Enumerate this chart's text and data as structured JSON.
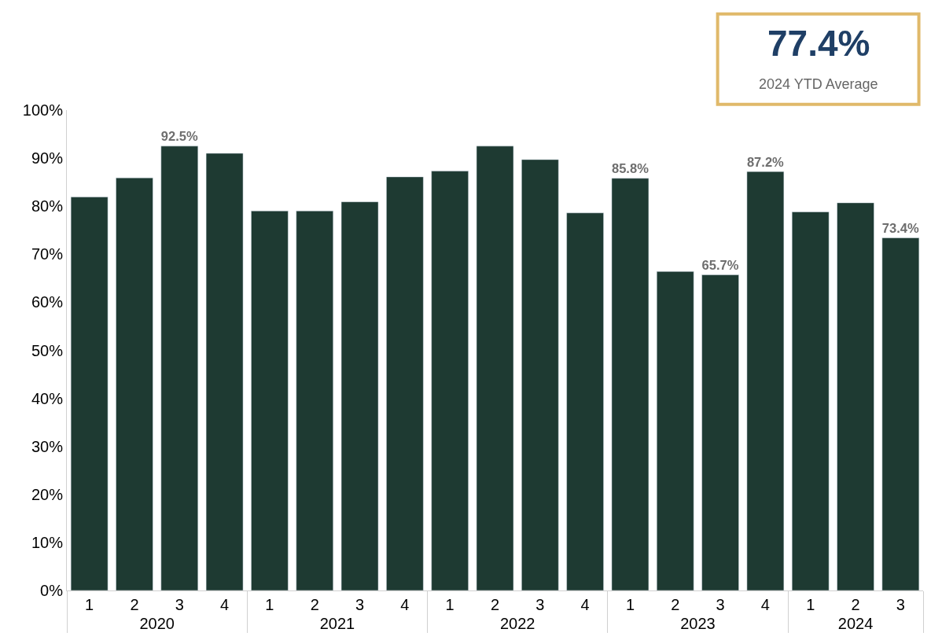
{
  "chart_data": {
    "type": "bar",
    "categories": [
      [
        "2020",
        "1"
      ],
      [
        null,
        "2"
      ],
      [
        null,
        "3"
      ],
      [
        null,
        "4"
      ],
      [
        "2021",
        "1"
      ],
      [
        null,
        "2"
      ],
      [
        null,
        "3"
      ],
      [
        null,
        "4"
      ],
      [
        "2022",
        "1"
      ],
      [
        null,
        "2"
      ],
      [
        null,
        "3"
      ],
      [
        null,
        "4"
      ],
      [
        "2023",
        "1"
      ],
      [
        null,
        "2"
      ],
      [
        null,
        "3"
      ],
      [
        null,
        "4"
      ],
      [
        "2024",
        "1"
      ],
      [
        null,
        "2"
      ],
      [
        null,
        "3"
      ]
    ],
    "values": [
      81.9,
      85.9,
      92.5,
      91.0,
      79.0,
      79.0,
      80.9,
      86.1,
      87.3,
      92.5,
      89.7,
      78.6,
      85.8,
      66.4,
      65.7,
      87.2,
      78.8,
      80.7,
      73.4
    ],
    "value_labels": [
      null,
      null,
      "92.5%",
      null,
      null,
      null,
      null,
      null,
      null,
      null,
      null,
      null,
      "85.8%",
      null,
      "65.7%",
      "87.2%",
      null,
      null,
      "73.4%"
    ],
    "color": "#1e3a32",
    "ylim": [
      0,
      100
    ],
    "yticks": [
      {
        "value": 0,
        "label": "0%"
      },
      {
        "value": 10,
        "label": "10%"
      },
      {
        "value": 20,
        "label": "20%"
      },
      {
        "value": 30,
        "label": "30%"
      },
      {
        "value": 40,
        "label": "40%"
      },
      {
        "value": 50,
        "label": "50%"
      },
      {
        "value": 60,
        "label": "60%"
      },
      {
        "value": 70,
        "label": "70%"
      },
      {
        "value": 80,
        "label": "80%"
      },
      {
        "value": 90,
        "label": "90%"
      },
      {
        "value": 100,
        "label": "100%"
      }
    ],
    "legend": false,
    "annotations": [
      "77.4%",
      "2024 YTD Average"
    ]
  }
}
